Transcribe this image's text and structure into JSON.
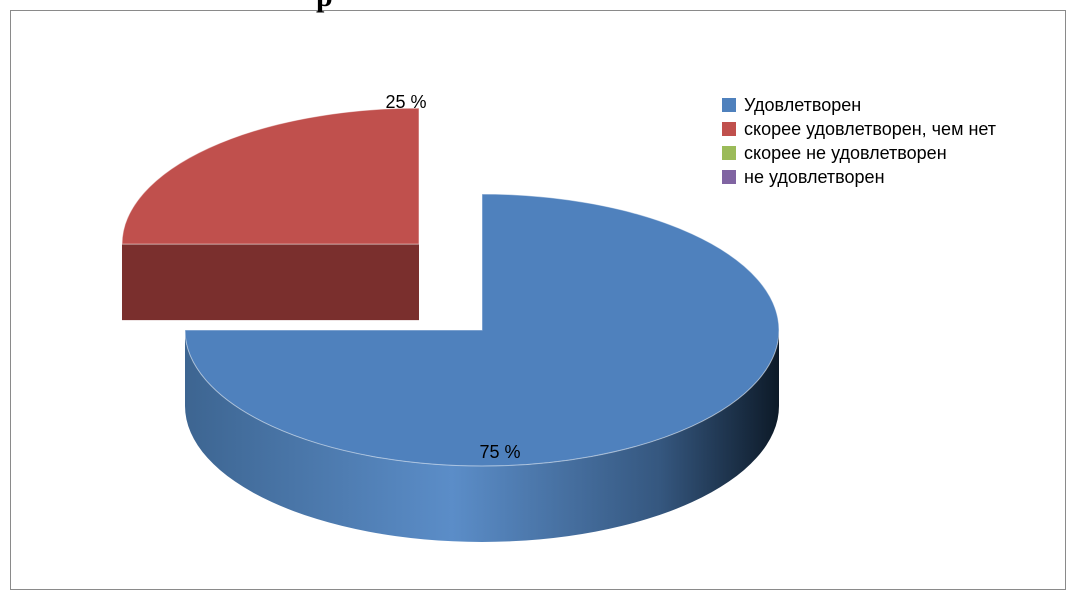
{
  "chart_data": {
    "type": "pie",
    "title": "",
    "title_fragment": "р",
    "categories": [
      "Удовлетворен",
      "скорее удовлетворен, чем нет",
      "скорее не удовлетворен",
      "не удовлетворен"
    ],
    "values": [
      75,
      25,
      0,
      0
    ],
    "data_labels": [
      "75 %",
      "25 %",
      "",
      ""
    ],
    "colors": [
      "#4F81BD",
      "#C0504D",
      "#9BBB59",
      "#8064A2"
    ],
    "exploded_slice": "скорее удовлетворен, чем нет",
    "legend_position": "right",
    "style": "3d-pie"
  }
}
